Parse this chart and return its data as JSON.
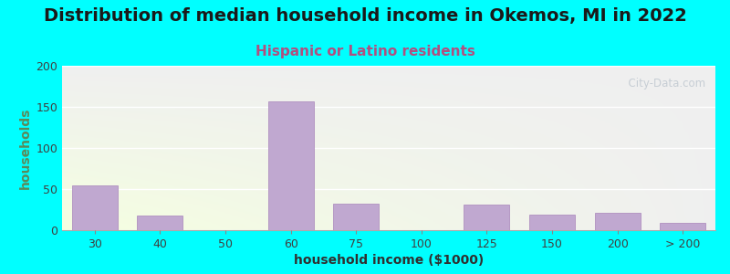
{
  "title": "Distribution of median household income in Okemos, MI in 2022",
  "subtitle": "Hispanic or Latino residents",
  "xlabel": "household income ($1000)",
  "ylabel": "households",
  "background_outer": "#00FFFF",
  "bar_color": "#C0A8D0",
  "bar_edge_color": "#B090C0",
  "categories": [
    "30",
    "40",
    "50",
    "60",
    "75",
    "100",
    "125",
    "150",
    "200",
    "> 200"
  ],
  "values": [
    55,
    18,
    0,
    157,
    32,
    0,
    31,
    19,
    21,
    9
  ],
  "ylim": [
    0,
    200
  ],
  "yticks": [
    0,
    50,
    100,
    150,
    200
  ],
  "title_fontsize": 14,
  "subtitle_fontsize": 11,
  "axis_label_fontsize": 10,
  "tick_fontsize": 9,
  "watermark": "  City-Data.com",
  "subtitle_color": "#B05080",
  "ylabel_color": "#5a8a5a",
  "xlabel_color": "#303030",
  "title_color": "#1a1a1a"
}
